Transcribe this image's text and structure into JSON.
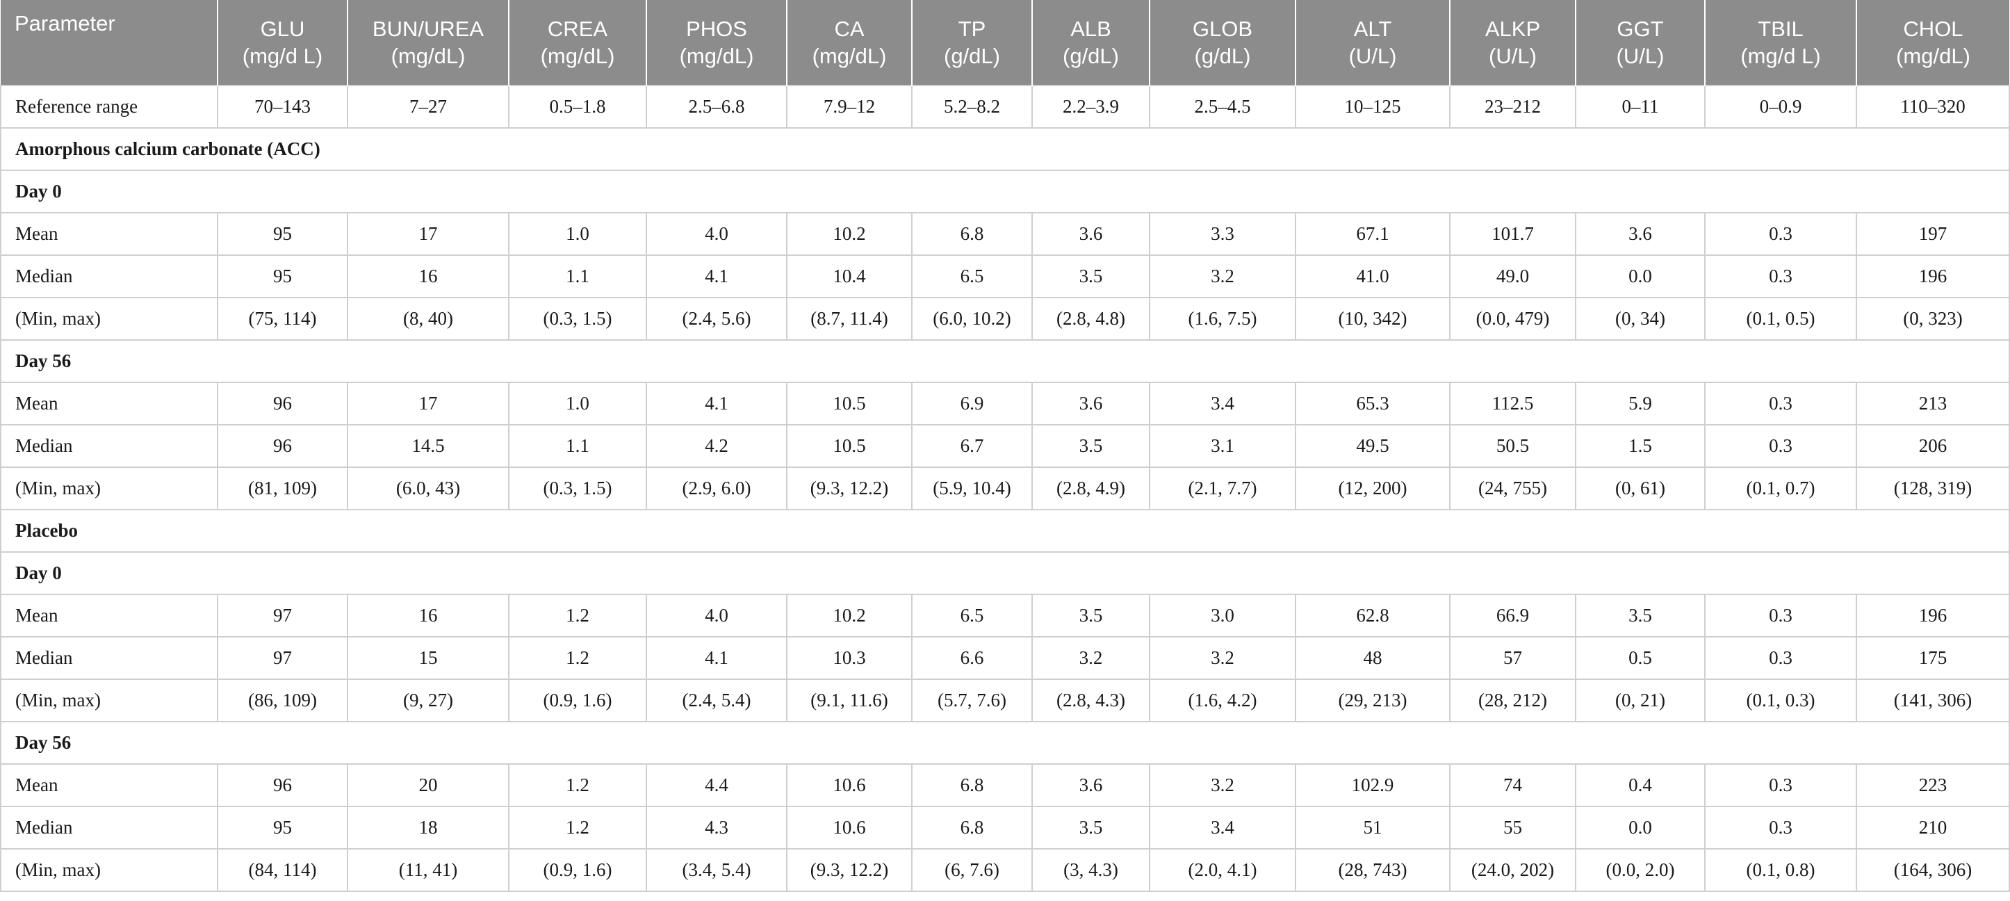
{
  "table": {
    "columns": [
      {
        "line1": "Parameter",
        "line2": ""
      },
      {
        "line1": "GLU",
        "line2": "(mg/d L)"
      },
      {
        "line1": "BUN/UREA",
        "line2": "(mg/dL)"
      },
      {
        "line1": "CREA",
        "line2": "(mg/dL)"
      },
      {
        "line1": "PHOS",
        "line2": "(mg/dL)"
      },
      {
        "line1": "CA",
        "line2": "(mg/dL)"
      },
      {
        "line1": "TP",
        "line2": "(g/dL)"
      },
      {
        "line1": "ALB",
        "line2": "(g/dL)"
      },
      {
        "line1": "GLOB",
        "line2": "(g/dL)"
      },
      {
        "line1": "ALT",
        "line2": "(U/L)"
      },
      {
        "line1": "ALKP",
        "line2": "(U/L)"
      },
      {
        "line1": "GGT",
        "line2": "(U/L)"
      },
      {
        "line1": "TBIL",
        "line2": "(mg/d L)"
      },
      {
        "line1": "CHOL",
        "line2": "(mg/dL)"
      }
    ],
    "rows": [
      {
        "type": "data",
        "label": "Reference range",
        "values": [
          "70–143",
          "7–27",
          "0.5–1.8",
          "2.5–6.8",
          "7.9–12",
          "5.2–8.2",
          "2.2–3.9",
          "2.5–4.5",
          "10–125",
          "23–212",
          "0–11",
          "0–0.9",
          "110–320"
        ]
      },
      {
        "type": "group",
        "label": "Amorphous calcium carbonate (ACC)"
      },
      {
        "type": "group",
        "label": "Day 0"
      },
      {
        "type": "data",
        "label": "Mean",
        "values": [
          "95",
          "17",
          "1.0",
          "4.0",
          "10.2",
          "6.8",
          "3.6",
          "3.3",
          "67.1",
          "101.7",
          "3.6",
          "0.3",
          "197"
        ]
      },
      {
        "type": "data",
        "label": "Median",
        "values": [
          "95",
          "16",
          "1.1",
          "4.1",
          "10.4",
          "6.5",
          "3.5",
          "3.2",
          "41.0",
          "49.0",
          "0.0",
          "0.3",
          "196"
        ]
      },
      {
        "type": "data",
        "label": "(Min, max)",
        "values": [
          "(75, 114)",
          "(8, 40)",
          "(0.3, 1.5)",
          "(2.4, 5.6)",
          "(8.7, 11.4)",
          "(6.0, 10.2)",
          "(2.8, 4.8)",
          "(1.6, 7.5)",
          "(10, 342)",
          "(0.0, 479)",
          "(0, 34)",
          "(0.1, 0.5)",
          "(0, 323)"
        ]
      },
      {
        "type": "group",
        "label": "Day 56"
      },
      {
        "type": "data",
        "label": "Mean",
        "values": [
          "96",
          "17",
          "1.0",
          "4.1",
          "10.5",
          "6.9",
          "3.6",
          "3.4",
          "65.3",
          "112.5",
          "5.9",
          "0.3",
          "213"
        ]
      },
      {
        "type": "data",
        "label": "Median",
        "values": [
          "96",
          "14.5",
          "1.1",
          "4.2",
          "10.5",
          "6.7",
          "3.5",
          "3.1",
          "49.5",
          "50.5",
          "1.5",
          "0.3",
          "206"
        ]
      },
      {
        "type": "data",
        "label": "(Min, max)",
        "values": [
          "(81, 109)",
          "(6.0, 43)",
          "(0.3, 1.5)",
          "(2.9, 6.0)",
          "(9.3, 12.2)",
          "(5.9, 10.4)",
          "(2.8, 4.9)",
          "(2.1, 7.7)",
          "(12, 200)",
          "(24, 755)",
          "(0, 61)",
          "(0.1, 0.7)",
          "(128, 319)"
        ]
      },
      {
        "type": "group",
        "label": "Placebo"
      },
      {
        "type": "group",
        "label": "Day 0"
      },
      {
        "type": "data",
        "label": "Mean",
        "values": [
          "97",
          "16",
          "1.2",
          "4.0",
          "10.2",
          "6.5",
          "3.5",
          "3.0",
          "62.8",
          "66.9",
          "3.5",
          "0.3",
          "196"
        ]
      },
      {
        "type": "data",
        "label": "Median",
        "values": [
          "97",
          "15",
          "1.2",
          "4.1",
          "10.3",
          "6.6",
          "3.2",
          "3.2",
          "48",
          "57",
          "0.5",
          "0.3",
          "175"
        ]
      },
      {
        "type": "data",
        "label": "(Min, max)",
        "values": [
          "(86, 109)",
          "(9, 27)",
          "(0.9, 1.6)",
          "(2.4, 5.4)",
          "(9.1, 11.6)",
          "(5.7, 7.6)",
          "(2.8, 4.3)",
          "(1.6, 4.2)",
          "(29, 213)",
          "(28, 212)",
          "(0, 21)",
          "(0.1, 0.3)",
          "(141, 306)"
        ]
      },
      {
        "type": "group",
        "label": "Day 56"
      },
      {
        "type": "data",
        "label": "Mean",
        "values": [
          "96",
          "20",
          "1.2",
          "4.4",
          "10.6",
          "6.8",
          "3.6",
          "3.2",
          "102.9",
          "74",
          "0.4",
          "0.3",
          "223"
        ]
      },
      {
        "type": "data",
        "label": "Median",
        "values": [
          "95",
          "18",
          "1.2",
          "4.3",
          "10.6",
          "6.8",
          "3.5",
          "3.4",
          "51",
          "55",
          "0.0",
          "0.3",
          "210"
        ]
      },
      {
        "type": "data",
        "label": "(Min, max)",
        "values": [
          "(84, 114)",
          "(11, 41)",
          "(0.9, 1.6)",
          "(3.4, 5.4)",
          "(9.3, 12.2)",
          "(6, 7.6)",
          "(3, 4.3)",
          "(2.0, 4.1)",
          "(28, 743)",
          "(24.0, 202)",
          "(0.0, 2.0)",
          "(0.1, 0.8)",
          "(164, 306)"
        ]
      }
    ]
  }
}
